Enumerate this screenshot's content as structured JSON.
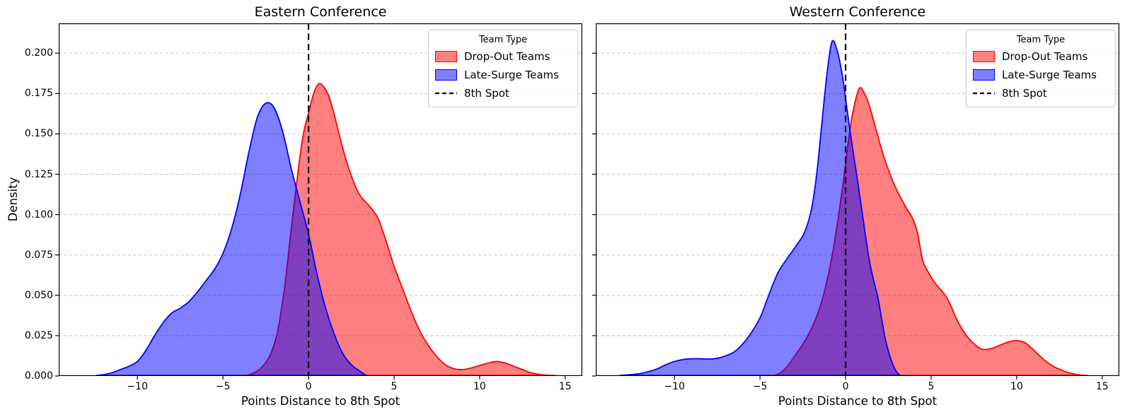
{
  "figure": {
    "background": "#ffffff"
  },
  "legend": {
    "title": "Team Type",
    "items": [
      {
        "label": "Drop-Out Teams",
        "swatch": "patch",
        "edge": "#ff0000",
        "fill": "#ff8080"
      },
      {
        "label": "Late-Surge Teams",
        "swatch": "patch",
        "edge": "#0000ff",
        "fill": "#8080ff"
      },
      {
        "label": "8th Spot",
        "swatch": "dashed-line",
        "edge": "#000000",
        "fill": "none"
      }
    ]
  },
  "chart_data": [
    {
      "type": "area",
      "title": "Eastern Conference",
      "xlabel": "Points Distance to 8th Spot",
      "ylabel": "Density",
      "xlim": [
        -14.6,
        16.0
      ],
      "ylim": [
        0,
        0.2185
      ],
      "grid": "horizontal-dashed",
      "legend_position": "upper-right",
      "xticks": [
        -10,
        -5,
        0,
        5,
        10,
        15
      ],
      "xtick_labels": [
        "−10",
        "−5",
        "0",
        "5",
        "10",
        "15"
      ],
      "yticks": [
        0,
        0.025,
        0.05,
        0.075,
        0.1,
        0.125,
        0.15,
        0.175,
        0.2
      ],
      "ytick_labels": [
        "0.000",
        "0.025",
        "0.050",
        "0.075",
        "0.100",
        "0.125",
        "0.150",
        "0.175",
        "0.200"
      ],
      "vline": {
        "x": 0,
        "label": "8th Spot",
        "style": "dashed",
        "color": "#000000"
      },
      "series": [
        {
          "name": "Drop-Out Teams",
          "color": "#ff0000",
          "fill_opacity": 0.5,
          "points": [
            [
              -3.7,
              0
            ],
            [
              -3.4,
              0.001
            ],
            [
              -3,
              0.003
            ],
            [
              -2.6,
              0.007
            ],
            [
              -2.2,
              0.014
            ],
            [
              -1.8,
              0.028
            ],
            [
              -1.4,
              0.055
            ],
            [
              -1,
              0.092
            ],
            [
              -0.6,
              0.128
            ],
            [
              -0.3,
              0.15
            ],
            [
              0,
              0.163
            ],
            [
              0.3,
              0.175
            ],
            [
              0.6,
              0.181
            ],
            [
              0.9,
              0.179
            ],
            [
              1.2,
              0.173
            ],
            [
              1.5,
              0.162
            ],
            [
              2,
              0.141
            ],
            [
              2.5,
              0.124
            ],
            [
              3,
              0.112
            ],
            [
              3.5,
              0.106
            ],
            [
              4,
              0.099
            ],
            [
              4.3,
              0.091
            ],
            [
              4.7,
              0.078
            ],
            [
              5,
              0.068
            ],
            [
              5.5,
              0.054
            ],
            [
              6,
              0.04
            ],
            [
              6.5,
              0.028
            ],
            [
              7,
              0.019
            ],
            [
              7.5,
              0.012
            ],
            [
              8,
              0.007
            ],
            [
              8.5,
              0.0045
            ],
            [
              9,
              0.004
            ],
            [
              9.5,
              0.005
            ],
            [
              10,
              0.0065
            ],
            [
              10.5,
              0.008
            ],
            [
              11,
              0.009
            ],
            [
              11.5,
              0.008
            ],
            [
              12,
              0.006
            ],
            [
              12.5,
              0.004
            ],
            [
              13,
              0.002
            ],
            [
              13.5,
              0.001
            ],
            [
              14,
              0.0004
            ],
            [
              14.4,
              0
            ]
          ]
        },
        {
          "name": "Late-Surge Teams",
          "color": "#0000ff",
          "fill_opacity": 0.5,
          "points": [
            [
              -12.4,
              0
            ],
            [
              -12,
              0.0008
            ],
            [
              -11.5,
              0.002
            ],
            [
              -11,
              0.004
            ],
            [
              -10.5,
              0.006
            ],
            [
              -10,
              0.009
            ],
            [
              -9.5,
              0.016
            ],
            [
              -9,
              0.025
            ],
            [
              -8.5,
              0.033
            ],
            [
              -8,
              0.039
            ],
            [
              -7.5,
              0.042
            ],
            [
              -7,
              0.046
            ],
            [
              -6.5,
              0.052
            ],
            [
              -6,
              0.059
            ],
            [
              -5.5,
              0.066
            ],
            [
              -5,
              0.076
            ],
            [
              -4.5,
              0.091
            ],
            [
              -4,
              0.112
            ],
            [
              -3.5,
              0.138
            ],
            [
              -3,
              0.16
            ],
            [
              -2.5,
              0.169
            ],
            [
              -2,
              0.166
            ],
            [
              -1.5,
              0.151
            ],
            [
              -1,
              0.128
            ],
            [
              -0.5,
              0.108
            ],
            [
              0,
              0.088
            ],
            [
              0.5,
              0.063
            ],
            [
              1,
              0.042
            ],
            [
              1.5,
              0.026
            ],
            [
              2,
              0.014
            ],
            [
              2.5,
              0.007
            ],
            [
              3,
              0.003
            ],
            [
              3.4,
              0
            ]
          ]
        }
      ]
    },
    {
      "type": "area",
      "title": "Western Conference",
      "xlabel": "Points Distance to 8th Spot",
      "xlim": [
        -14.6,
        16.0
      ],
      "ylim": [
        0,
        0.2185
      ],
      "grid": "horizontal-dashed",
      "legend_position": "upper-right",
      "xticks": [
        -10,
        -5,
        0,
        5,
        10,
        15
      ],
      "xtick_labels": [
        "−10",
        "−5",
        "0",
        "5",
        "10",
        "15"
      ],
      "yticks": [
        0,
        0.025,
        0.05,
        0.075,
        0.1,
        0.125,
        0.15,
        0.175,
        0.2
      ],
      "ytick_labels": [
        "0.000",
        "0.025",
        "0.050",
        "0.075",
        "0.100",
        "0.125",
        "0.150",
        "0.175",
        "0.200"
      ],
      "vline": {
        "x": 0,
        "label": "8th Spot",
        "style": "dashed",
        "color": "#000000"
      },
      "series": [
        {
          "name": "Drop-Out Teams",
          "color": "#ff0000",
          "fill_opacity": 0.5,
          "points": [
            [
              -4.2,
              0
            ],
            [
              -3.8,
              0.002
            ],
            [
              -3.4,
              0.006
            ],
            [
              -3,
              0.012
            ],
            [
              -2.6,
              0.018
            ],
            [
              -2.2,
              0.025
            ],
            [
              -1.8,
              0.034
            ],
            [
              -1.4,
              0.046
            ],
            [
              -1,
              0.063
            ],
            [
              -0.6,
              0.086
            ],
            [
              -0.2,
              0.115
            ],
            [
              0.1,
              0.14
            ],
            [
              0.4,
              0.162
            ],
            [
              0.8,
              0.178
            ],
            [
              1.1,
              0.175
            ],
            [
              1.4,
              0.167
            ],
            [
              1.8,
              0.152
            ],
            [
              2.2,
              0.137
            ],
            [
              2.6,
              0.125
            ],
            [
              3,
              0.115
            ],
            [
              3.5,
              0.105
            ],
            [
              3.9,
              0.098
            ],
            [
              4.2,
              0.089
            ],
            [
              4.5,
              0.072
            ],
            [
              4.8,
              0.065
            ],
            [
              5.2,
              0.058
            ],
            [
              5.6,
              0.053
            ],
            [
              6,
              0.047
            ],
            [
              6.5,
              0.035
            ],
            [
              7,
              0.026
            ],
            [
              7.5,
              0.02
            ],
            [
              8,
              0.0165
            ],
            [
              8.5,
              0.017
            ],
            [
              9,
              0.019
            ],
            [
              9.5,
              0.021
            ],
            [
              10,
              0.022
            ],
            [
              10.5,
              0.0205
            ],
            [
              11,
              0.016
            ],
            [
              11.5,
              0.011
            ],
            [
              12,
              0.0068
            ],
            [
              12.5,
              0.0042
            ],
            [
              13,
              0.0022
            ],
            [
              13.5,
              0.001
            ],
            [
              14.1,
              0
            ]
          ]
        },
        {
          "name": "Late-Surge Teams",
          "color": "#0000ff",
          "fill_opacity": 0.5,
          "points": [
            [
              -13.2,
              0
            ],
            [
              -12.6,
              0.0008
            ],
            [
              -12,
              0.0015
            ],
            [
              -11.5,
              0.0028
            ],
            [
              -11,
              0.0045
            ],
            [
              -10.5,
              0.007
            ],
            [
              -10,
              0.009
            ],
            [
              -9.5,
              0.0102
            ],
            [
              -9,
              0.0107
            ],
            [
              -8.5,
              0.0107
            ],
            [
              -8,
              0.0105
            ],
            [
              -7.5,
              0.011
            ],
            [
              -7,
              0.0125
            ],
            [
              -6.5,
              0.015
            ],
            [
              -6,
              0.02
            ],
            [
              -5.5,
              0.027
            ],
            [
              -5,
              0.036
            ],
            [
              -4.6,
              0.047
            ],
            [
              -4.2,
              0.058
            ],
            [
              -3.9,
              0.065
            ],
            [
              -3.6,
              0.07
            ],
            [
              -3.2,
              0.076
            ],
            [
              -2.8,
              0.082
            ],
            [
              -2.4,
              0.089
            ],
            [
              -2,
              0.103
            ],
            [
              -1.7,
              0.124
            ],
            [
              -1.4,
              0.155
            ],
            [
              -1.1,
              0.186
            ],
            [
              -0.8,
              0.207
            ],
            [
              -0.5,
              0.202
            ],
            [
              -0.2,
              0.187
            ],
            [
              0,
              0.172
            ],
            [
              0.3,
              0.149
            ],
            [
              0.7,
              0.121
            ],
            [
              1,
              0.099
            ],
            [
              1.35,
              0.074
            ],
            [
              1.6,
              0.061
            ],
            [
              1.9,
              0.048
            ],
            [
              2.3,
              0.024
            ],
            [
              2.6,
              0.012
            ],
            [
              2.9,
              0.004
            ],
            [
              3.2,
              0
            ]
          ]
        }
      ]
    }
  ]
}
